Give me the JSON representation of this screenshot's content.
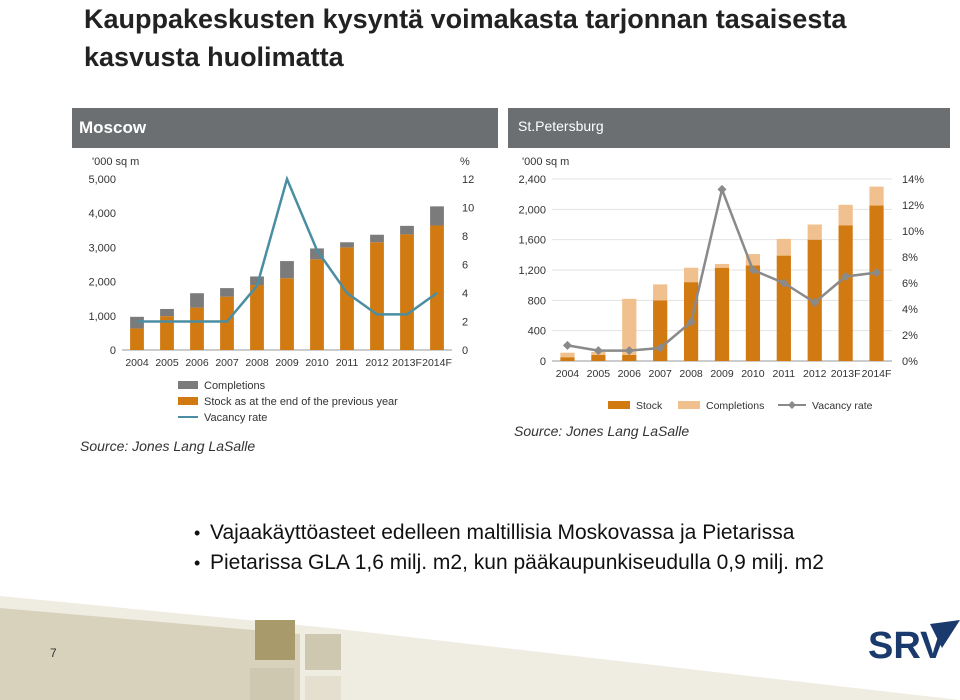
{
  "page": {
    "title": "Kauppakeskusten kysyntä voimakasta tarjonnan tasaisesta kasvusta huolimatta",
    "bullets": [
      "Vajaakäyttöasteet edelleen maltillisia Moskovassa ja Pietarissa",
      "Pietarissa GLA 1,6 milj. m2, kun pääkaupunkiseudulla 0,9 milj. m2"
    ],
    "page_number": "7",
    "logo_text": "SRV"
  },
  "colors": {
    "header_bg": "#6c6f72",
    "stock": "#d27a12",
    "moscow_completions": "#7b7b7b",
    "spb_completions": "#f0c08e",
    "moscow_vacancy": "#4b8ea3",
    "spb_vacancy": "#8a8a8a",
    "logo_blue": "#1a3a6e",
    "footer_tan": "#cfc8b0",
    "footer_olive": "#a89a6a"
  },
  "chart_data": [
    {
      "type": "bar",
      "panel_title": "Moscow",
      "title": "",
      "y_left_unit": "'000 sq m",
      "y_right_unit": "%",
      "ylim": [
        0,
        5000
      ],
      "ylim_right": [
        0,
        12
      ],
      "y_ticks": [
        "0",
        "1,000",
        "2,000",
        "3,000",
        "4,000",
        "5,000"
      ],
      "y_right_ticks": [
        "0",
        "2",
        "4",
        "6",
        "8",
        "10",
        "12"
      ],
      "categories": [
        "2004",
        "2005",
        "2006",
        "2007",
        "2008",
        "2009",
        "2010",
        "2011",
        "2012",
        "2013F",
        "2014F"
      ],
      "stacked": true,
      "series": [
        {
          "name": "Stock as at the end of the previous year",
          "type": "bar",
          "values": [
            630,
            990,
            1240,
            1560,
            1900,
            2100,
            2650,
            3000,
            3150,
            3380,
            3640
          ]
        },
        {
          "name": "Completions",
          "type": "bar",
          "values": [
            340,
            210,
            420,
            250,
            250,
            500,
            320,
            150,
            220,
            250,
            560
          ]
        },
        {
          "name": "Vacancy rate",
          "type": "line",
          "axis": "right",
          "values": [
            2.0,
            2.0,
            2.0,
            2.0,
            4.5,
            12.0,
            7.0,
            4.0,
            2.5,
            2.5,
            4.0
          ]
        }
      ],
      "legend_position": "bottom",
      "source": "Source: Jones Lang LaSalle"
    },
    {
      "type": "bar",
      "panel_title": "St.Petersburg",
      "title": "",
      "y_left_unit": "'000 sq m",
      "ylim": [
        0,
        2400
      ],
      "ylim_right": [
        0,
        14
      ],
      "y_ticks": [
        "0",
        "400",
        "800",
        "1,200",
        "1,600",
        "2,000",
        "2,400"
      ],
      "y_right_ticks": [
        "0%",
        "2%",
        "4%",
        "6%",
        "8%",
        "10%",
        "12%",
        "14%"
      ],
      "categories": [
        "2004",
        "2005",
        "2006",
        "2007",
        "2008",
        "2009",
        "2010",
        "2011",
        "2012",
        "2013F",
        "2014F"
      ],
      "stacked": true,
      "series": [
        {
          "name": "Stock",
          "type": "bar",
          "values": [
            50,
            80,
            80,
            800,
            1040,
            1230,
            1260,
            1390,
            1600,
            1790,
            2050
          ]
        },
        {
          "name": "Completions",
          "type": "bar",
          "values": [
            60,
            40,
            740,
            210,
            190,
            50,
            150,
            220,
            200,
            270,
            250
          ]
        },
        {
          "name": "Vacancy rate",
          "type": "line",
          "axis": "right",
          "values": [
            1.2,
            0.8,
            0.8,
            1.0,
            3.0,
            13.2,
            7.0,
            6.0,
            4.5,
            6.5,
            6.8
          ]
        }
      ],
      "legend_position": "bottom",
      "source": "Source: Jones Lang LaSalle"
    }
  ]
}
